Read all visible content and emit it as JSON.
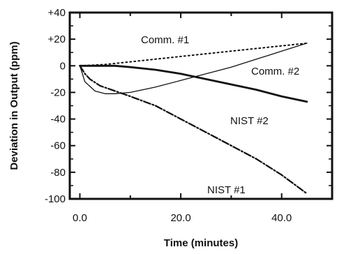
{
  "chart_data": {
    "type": "line",
    "title": "",
    "xlabel": "Time (minutes)",
    "ylabel": "Deviation in Output (ppm)",
    "xlim": [
      -2,
      50
    ],
    "ylim": [
      -100,
      40
    ],
    "xticks": [
      0,
      20,
      40
    ],
    "xtick_labels": [
      "0.0",
      "20.0",
      "40.0"
    ],
    "yticks": [
      40,
      20,
      0,
      -20,
      -40,
      -60,
      -80,
      -100
    ],
    "ytick_labels": [
      "+40",
      "+20",
      "0",
      "-20",
      "-40",
      "-60",
      "-80",
      "-100"
    ],
    "grid": false,
    "series": [
      {
        "name": "Comm. #1",
        "style": "dotted",
        "x": [
          0,
          5,
          10,
          15,
          20,
          25,
          30,
          35,
          40,
          45
        ],
        "y": [
          0,
          1,
          3,
          5,
          7,
          9,
          11,
          13,
          15,
          17
        ]
      },
      {
        "name": "Comm. #2",
        "style": "solid-thin",
        "x": [
          0,
          1,
          3,
          5,
          7,
          10,
          15,
          20,
          25,
          30,
          35,
          40,
          45
        ],
        "y": [
          0,
          -12,
          -19,
          -21,
          -21,
          -20,
          -16,
          -11,
          -6,
          -1,
          5,
          11,
          17
        ]
      },
      {
        "name": "NIST #2",
        "style": "solid-thick",
        "x": [
          0,
          2,
          5,
          7,
          10,
          15,
          20,
          25,
          30,
          35,
          40,
          45
        ],
        "y": [
          0,
          0,
          0,
          0,
          -1,
          -3,
          -6,
          -10,
          -14,
          -18,
          -23,
          -27
        ]
      },
      {
        "name": "NIST #1",
        "style": "dash-dot",
        "x": [
          0,
          1,
          2,
          4,
          7,
          10,
          15,
          20,
          25,
          30,
          35,
          40,
          45
        ],
        "y": [
          0,
          -6,
          -10,
          -15,
          -19,
          -23,
          -30,
          -40,
          -50,
          -60,
          -70,
          -82,
          -96
        ]
      }
    ]
  }
}
